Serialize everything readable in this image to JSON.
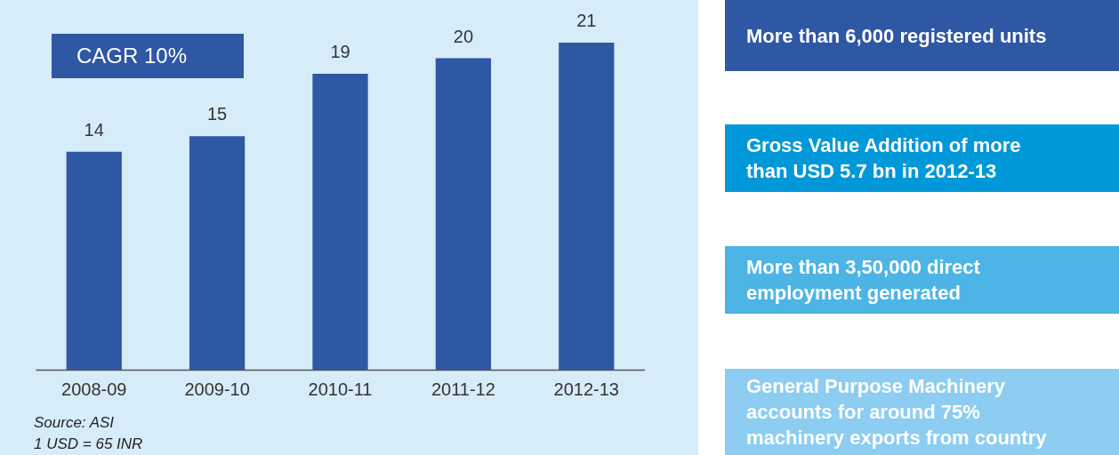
{
  "chart_data": [
    {
      "type": "bar",
      "categories": [
        "2008-09",
        "2009-10",
        "2010-11",
        "2011-12",
        "2012-13"
      ],
      "values": [
        14,
        15,
        19,
        20,
        21
      ],
      "color": "#2e57a4",
      "data_labels": true,
      "annotations": [
        "CAGR 10%",
        "Source: ASI",
        "1 USD = 65 INR"
      ]
    },
    {
      "type": "other",
      "annotations": [
        "More than 6,000 registered units",
        "Gross Value Addition of more than USD 5.7 bn in 2012-13",
        "More than 3,50,000 direct employment generated",
        "General Purpose Machinery accounts for around 75% machinery exports from country"
      ]
    }
  ]
}
